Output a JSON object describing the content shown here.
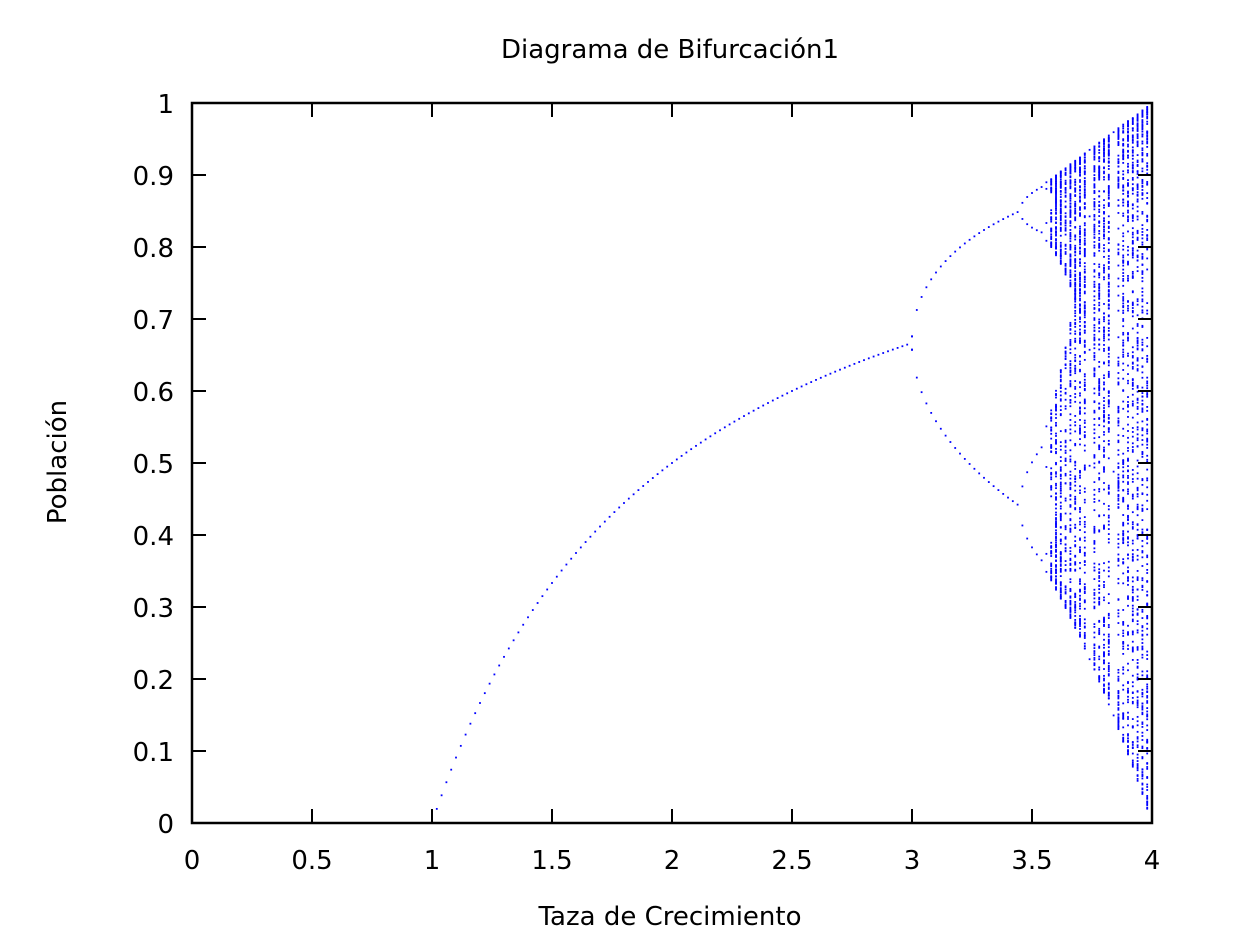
{
  "chart_data": {
    "type": "scatter",
    "title": "Diagrama de Bifurcación1",
    "xlabel": "Taza de Crecimiento",
    "ylabel": "Población",
    "xlim": [
      0,
      4
    ],
    "ylim": [
      0,
      1
    ],
    "x_ticks": [
      "0",
      "0.5",
      "1",
      "1.5",
      "2",
      "2.5",
      "3",
      "3.5",
      "4"
    ],
    "y_ticks": [
      "0",
      "0.1",
      "0.2",
      "0.3",
      "0.4",
      "0.5",
      "0.6",
      "0.7",
      "0.8",
      "0.9",
      "1"
    ],
    "grid": false,
    "legend": "none",
    "series": [
      {
        "model": "logistic map x → r·x·(1−x), long-run values plotted against r",
        "r_range": [
          0,
          4
        ],
        "r_step": 0.02,
        "color": "#0000ff"
      }
    ]
  }
}
